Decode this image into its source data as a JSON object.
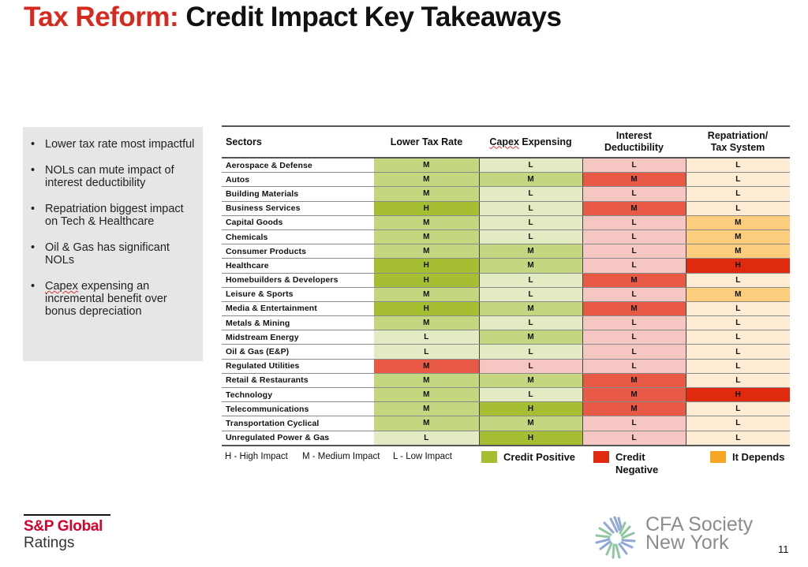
{
  "title": {
    "highlight": "Tax Reform:",
    "rest": "Credit Impact Key Takeaways"
  },
  "takeaways": [
    "Lower tax rate most impactful",
    "NOLs can mute impact of interest deductibility",
    "Repatriation biggest impact on Tech & Healthcare",
    "Oil & Gas has significant NOLs",
    "Capex expensing an incremental benefit over bonus depreciation"
  ],
  "table": {
    "headers": [
      "Sectors",
      "Lower Tax Rate",
      "Capex Expensing",
      "Interest Deductibility",
      "Repatriation/ Tax System"
    ],
    "column_types": [
      "sector",
      "positive",
      "positive",
      "negative",
      "depends"
    ],
    "rows": [
      {
        "sector": "Aerospace & Defense",
        "values": [
          "M",
          "L",
          "L",
          "L"
        ]
      },
      {
        "sector": "Autos",
        "values": [
          "M",
          "M",
          "M",
          "L"
        ]
      },
      {
        "sector": "Building Materials",
        "values": [
          "M",
          "L",
          "L",
          "L"
        ]
      },
      {
        "sector": "Business Services",
        "values": [
          "H",
          "L",
          "M",
          "L"
        ]
      },
      {
        "sector": "Capital Goods",
        "values": [
          "M",
          "L",
          "L",
          "M"
        ]
      },
      {
        "sector": "Chemicals",
        "values": [
          "M",
          "L",
          "L",
          "M"
        ]
      },
      {
        "sector": "Consumer Products",
        "values": [
          "M",
          "M",
          "L",
          "M"
        ]
      },
      {
        "sector": "Healthcare",
        "values": [
          "H",
          "M",
          "L",
          "H"
        ]
      },
      {
        "sector": "Homebuilders & Developers",
        "values": [
          "H",
          "L",
          "M",
          "L"
        ]
      },
      {
        "sector": "Leisure & Sports",
        "values": [
          "M",
          "L",
          "L",
          "M"
        ]
      },
      {
        "sector": "Media & Entertainment",
        "values": [
          "H",
          "M",
          "M",
          "L"
        ]
      },
      {
        "sector": "Metals & Mining",
        "values": [
          "M",
          "L",
          "L",
          "L"
        ]
      },
      {
        "sector": "Midstream Energy",
        "values": [
          "L",
          "M",
          "L",
          "L"
        ]
      },
      {
        "sector": "Oil & Gas (E&P)",
        "values": [
          "L",
          "L",
          "L",
          "L"
        ]
      },
      {
        "sector": "Regulated Utilities",
        "values": [
          "M",
          "L",
          "L",
          "L"
        ],
        "overrides": [
          "negative",
          "negative",
          null,
          null
        ]
      },
      {
        "sector": "Retail & Restaurants",
        "values": [
          "M",
          "M",
          "M",
          "L"
        ]
      },
      {
        "sector": "Technology",
        "values": [
          "M",
          "L",
          "M",
          "H"
        ],
        "overrides": [
          null,
          null,
          null,
          "negative"
        ]
      },
      {
        "sector": "Telecommunications",
        "values": [
          "M",
          "H",
          "M",
          "L"
        ]
      },
      {
        "sector": "Transportation Cyclical",
        "values": [
          "M",
          "M",
          "L",
          "L"
        ]
      },
      {
        "sector": "Unregulated Power & Gas",
        "values": [
          "L",
          "H",
          "L",
          "L"
        ]
      }
    ]
  },
  "colors": {
    "positive": {
      "H": "#a6bf32",
      "M": "#c4d67f",
      "L": "#e2ebc3"
    },
    "negative": {
      "H": "#e02a10",
      "M": "#e85a45",
      "L": "#f6c6c2"
    },
    "depends": {
      "H": "#e02a10",
      "M": "#fbcd7d",
      "L": "#fdebd3"
    },
    "legend_positive": "#a6bf32",
    "legend_negative": "#e02a10",
    "legend_depends": "#f6a623"
  },
  "legend": {
    "key_high": "H - High Impact",
    "key_medium": "M - Medium Impact",
    "key_low": "L - Low Impact",
    "positive": "Credit Positive",
    "negative": "Credit Negative",
    "depends": "It Depends"
  },
  "footer": {
    "sp_brand": "S&P Global",
    "sp_sub": "Ratings",
    "cfa_line1": "CFA Society",
    "cfa_line2": "New York",
    "page_number": "11"
  }
}
